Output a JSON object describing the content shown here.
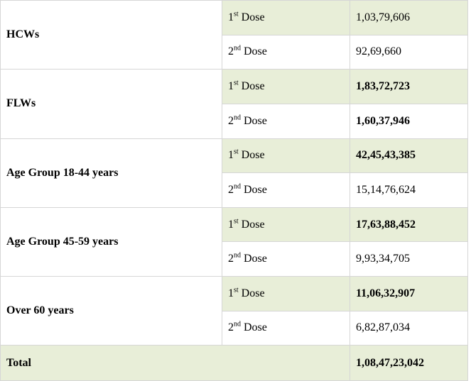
{
  "table": {
    "groups": [
      {
        "category": "HCWs",
        "doses": [
          {
            "ordinal": "1",
            "suffix": "st",
            "word": "Dose",
            "value": "1,03,79,606",
            "bold": false
          },
          {
            "ordinal": "2",
            "suffix": "nd",
            "word": "Dose",
            "value": "92,69,660",
            "bold": false
          }
        ]
      },
      {
        "category": "FLWs",
        "doses": [
          {
            "ordinal": "1",
            "suffix": "st",
            "word": "Dose",
            "value": "1,83,72,723",
            "bold": true
          },
          {
            "ordinal": "2",
            "suffix": "nd",
            "word": "Dose",
            "value": "1,60,37,946",
            "bold": true
          }
        ]
      },
      {
        "category": "Age Group 18-44 years",
        "doses": [
          {
            "ordinal": "1",
            "suffix": "st",
            "word": "Dose",
            "value": "42,45,43,385",
            "bold": true
          },
          {
            "ordinal": "2",
            "suffix": "nd",
            "word": "Dose",
            "value": "15,14,76,624",
            "bold": false
          }
        ]
      },
      {
        "category": "Age Group 45-59 years",
        "doses": [
          {
            "ordinal": "1",
            "suffix": "st",
            "word": "Dose",
            "value": "17,63,88,452",
            "bold": true
          },
          {
            "ordinal": "2",
            "suffix": "nd",
            "word": "Dose",
            "value": "9,93,34,705",
            "bold": false
          }
        ]
      },
      {
        "category": "Over 60 years",
        "doses": [
          {
            "ordinal": "1",
            "suffix": "st",
            "word": "Dose",
            "value": "11,06,32,907",
            "bold": true
          },
          {
            "ordinal": "2",
            "suffix": "nd",
            "word": "Dose",
            "value": "6,82,87,034",
            "bold": false
          }
        ]
      }
    ],
    "total": {
      "label": "Total",
      "value": "1,08,47,23,042",
      "bold": true
    }
  },
  "colors": {
    "row_highlight_green": "#e8eed8",
    "cell_border": "#d6d6d6",
    "text": "#000000",
    "background": "#ffffff"
  }
}
